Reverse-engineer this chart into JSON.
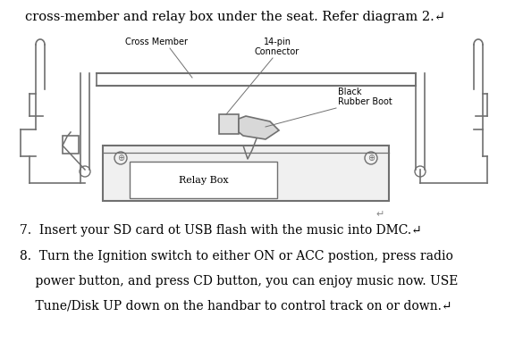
{
  "bg_color": "#ffffff",
  "top_text": "cross-member and relay box under the seat. Refer diagram 2.",
  "return_char": "↵",
  "item7_text": "7.  Insert your SD card ot USB flash with the music into DMC.",
  "item8_line1": "8.  Turn the Ignition switch to either ON or ACC postion, press radio",
  "item8_line2": "    power button, and press CD button, you can enjoy music now. USE",
  "item8_line3": "    Tune/Disk UP down on the handbar to control track on or down.",
  "label_cross_member": "Cross Member",
  "label_14pin_line1": "14-pin",
  "label_14pin_line2": "Connector",
  "label_black_boot_line1": "Black",
  "label_black_boot_line2": "Rubber Boot",
  "label_relay_box": "Relay Box",
  "font_size_top": 10.5,
  "font_size_label": 7,
  "font_size_item": 10,
  "text_color": "#000000",
  "diagram_color": "#707070",
  "diagram_lw": 1.2
}
